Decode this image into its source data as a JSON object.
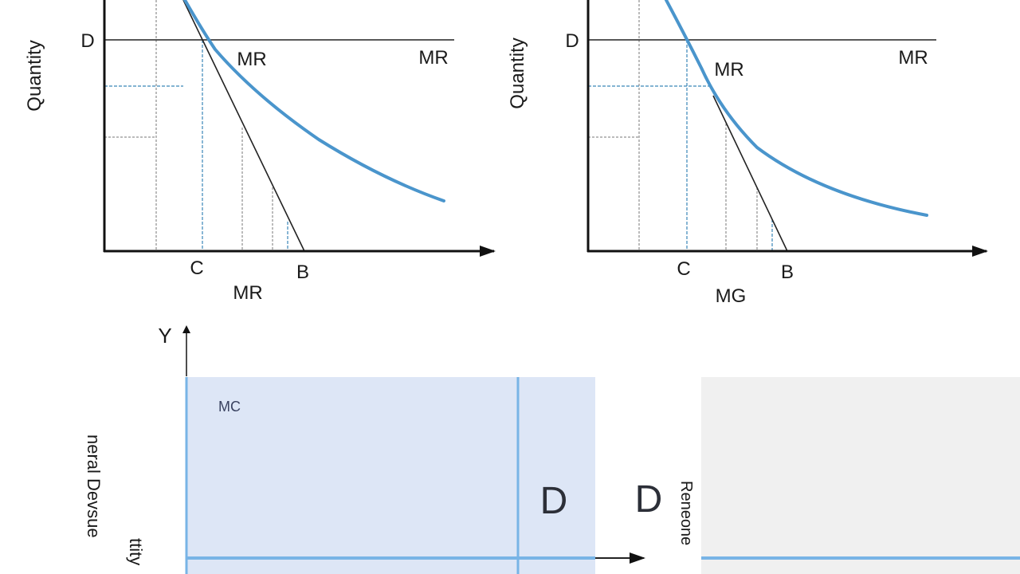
{
  "top_left": {
    "y_axis_label": "Quantity",
    "d_label": "D",
    "mr_label_curve": "MR",
    "mr_label_line": "MR",
    "c_label": "C",
    "b_label": "B",
    "x_axis_label": "MR"
  },
  "top_right": {
    "y_axis_label": "Quantity",
    "d_label": "D",
    "mr_label_curve": "MR",
    "mr_label_line": "MR",
    "c_label": "C",
    "b_label": "B",
    "x_axis_label": "MG"
  },
  "bottom": {
    "y_label": "Y",
    "mc_label": "MC",
    "d_label_inside": "D",
    "d_label_outside": "D",
    "left_label_1": "neral Devsue",
    "left_label_2": "ttity",
    "right_label": "Reneone"
  },
  "colors": {
    "curve": "#4a95cc",
    "panel_fill": "#dde6f6",
    "panel_line": "#78b4e6",
    "gray_panel": "#f0f0f0"
  }
}
